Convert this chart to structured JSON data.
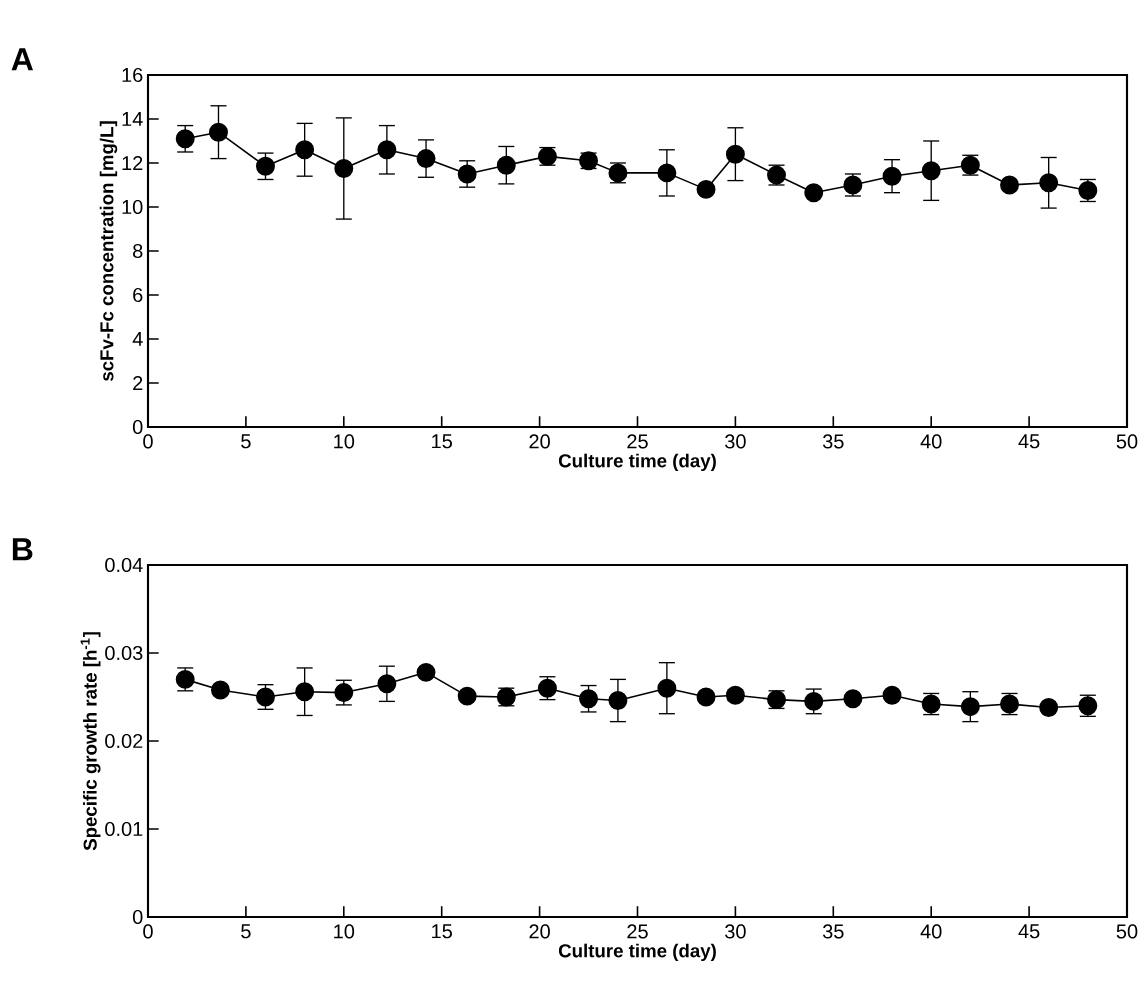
{
  "chart_data": [
    {
      "type": "line",
      "annotations": [
        "A"
      ],
      "xlabel": "Culture time (day)",
      "ylabel": "scFv-Fc concentration [mg/L]",
      "marker": "circle",
      "line_style": "solid",
      "x": [
        1.9,
        3.6,
        6,
        8,
        10,
        12.2,
        14.2,
        16.3,
        18.3,
        20.4,
        22.5,
        24,
        26.5,
        28.5,
        30,
        32.1,
        34,
        36,
        38,
        40,
        42,
        44,
        46,
        48
      ],
      "series": [
        {
          "color": "#000000",
          "values": [
            13.1,
            13.4,
            11.85,
            12.6,
            11.75,
            12.6,
            12.2,
            11.5,
            11.9,
            12.3,
            12.1,
            11.55,
            11.55,
            10.8,
            12.4,
            11.45,
            10.65,
            11.0,
            11.4,
            11.65,
            11.9,
            11.0,
            11.1,
            10.75
          ],
          "errors": [
            0.6,
            1.2,
            0.6,
            1.2,
            2.3,
            1.1,
            0.85,
            0.6,
            0.85,
            0.4,
            0.35,
            0.45,
            1.05,
            null,
            1.2,
            0.45,
            null,
            0.5,
            0.75,
            1.35,
            0.45,
            null,
            1.15,
            0.5
          ]
        }
      ],
      "xlim": [
        0,
        50
      ],
      "xticks": [
        0,
        5,
        10,
        15,
        20,
        25,
        30,
        35,
        40,
        45,
        50
      ],
      "ylim": [
        0,
        16
      ],
      "yticks": [
        0,
        2,
        4,
        6,
        8,
        10,
        12,
        14,
        16
      ]
    },
    {
      "type": "line",
      "annotations": [
        "B"
      ],
      "xlabel": "Culture time (day)",
      "ylabel": "Specific growth rate [h$^{-1}$]",
      "marker": "circle",
      "line_style": "solid",
      "x": [
        1.9,
        3.7,
        6,
        8,
        10,
        12.2,
        14.2,
        16.3,
        18.3,
        20.4,
        22.5,
        24,
        26.5,
        28.5,
        30,
        32.1,
        34,
        36,
        38,
        40,
        42,
        44,
        46,
        48
      ],
      "series": [
        {
          "color": "#000000",
          "values": [
            0.027,
            0.0258,
            0.025,
            0.0256,
            0.0255,
            0.0265,
            0.0278,
            0.0251,
            0.025,
            0.026,
            0.0248,
            0.0246,
            0.026,
            0.025,
            0.0252,
            0.0247,
            0.0245,
            0.0248,
            0.0252,
            0.0242,
            0.0239,
            0.0242,
            0.0238,
            0.024
          ],
          "errors": [
            0.0013,
            null,
            0.0014,
            0.0027,
            0.0014,
            0.002,
            null,
            null,
            0.001,
            0.0013,
            0.0015,
            0.0024,
            0.0029,
            null,
            0.0006,
            0.001,
            0.0014,
            null,
            null,
            0.0012,
            0.0017,
            0.0012,
            null,
            0.0012
          ]
        }
      ],
      "xlim": [
        0,
        50
      ],
      "xticks": [
        0,
        5,
        10,
        15,
        20,
        25,
        30,
        35,
        40,
        45,
        50
      ],
      "ylim": [
        0,
        0.04
      ],
      "yticks": [
        0,
        0.01,
        0.02,
        0.03,
        0.04
      ]
    }
  ]
}
